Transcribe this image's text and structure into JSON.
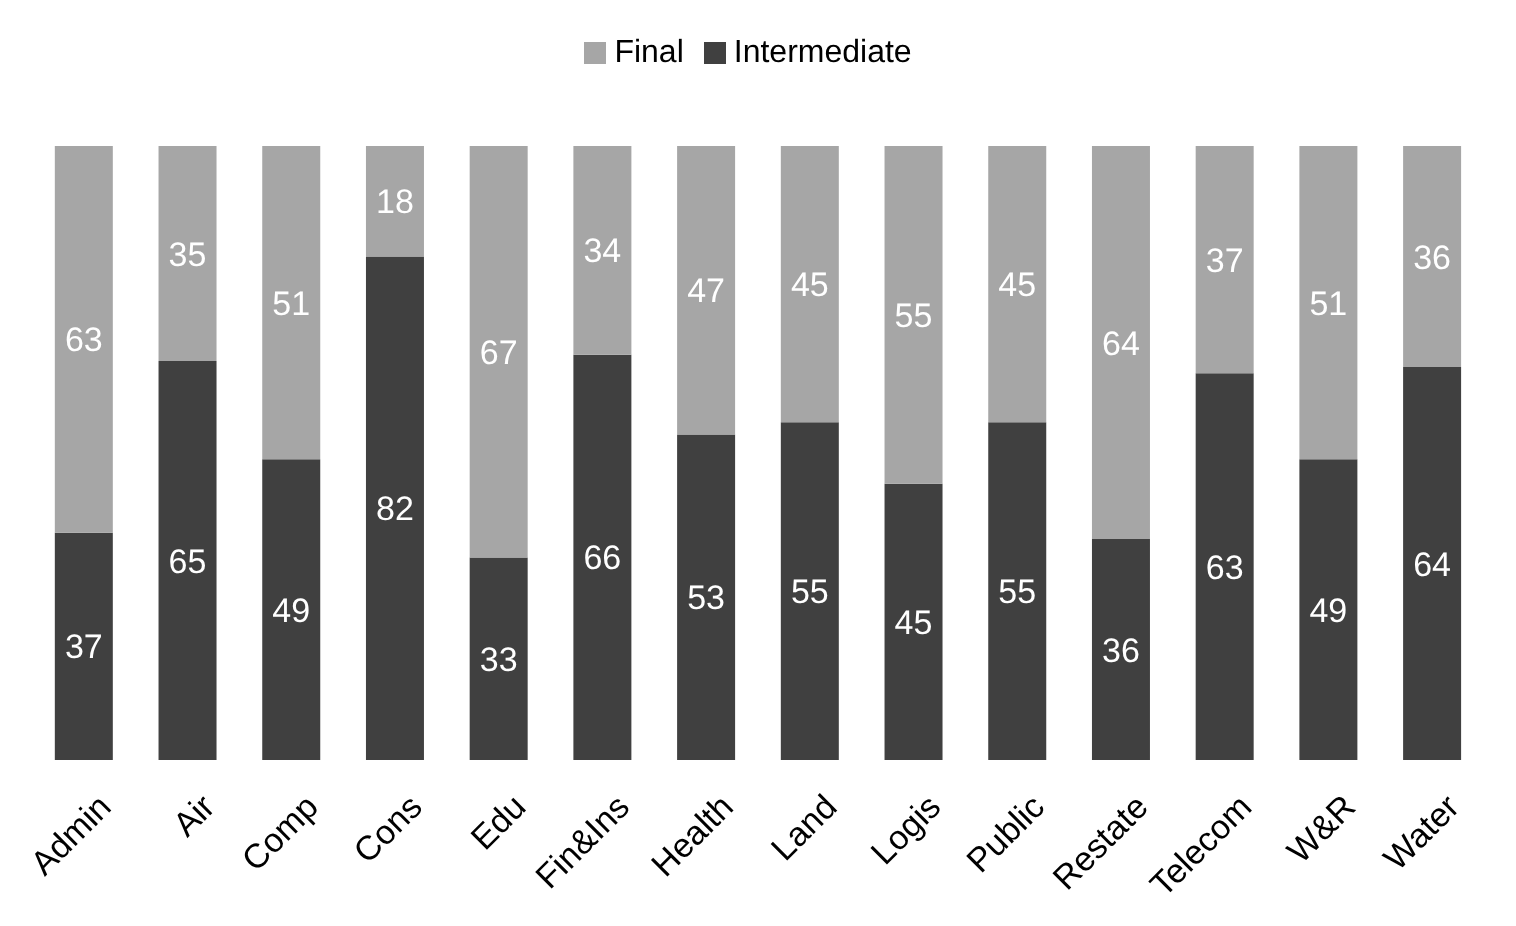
{
  "chart_data": {
    "type": "bar",
    "stacked": true,
    "data_labels": true,
    "legend": "top",
    "tick_labels": "x",
    "ylim": [
      0,
      100
    ],
    "categories": [
      "Admin",
      "Air",
      "Comp",
      "Cons",
      "Edu",
      "Fin&Ins",
      "Health",
      "Land",
      "Logis",
      "Public",
      "Restate",
      "Telecom",
      "W&R",
      "Water"
    ],
    "series": [
      {
        "name": "Intermediate",
        "color": "#404040",
        "values": [
          37,
          65,
          49,
          82,
          33,
          66,
          53,
          55,
          45,
          55,
          36,
          63,
          49,
          64
        ]
      },
      {
        "name": "Final",
        "color": "#a6a6a6",
        "values": [
          63,
          35,
          51,
          18,
          67,
          34,
          47,
          45,
          55,
          45,
          64,
          37,
          51,
          36
        ]
      }
    ]
  }
}
